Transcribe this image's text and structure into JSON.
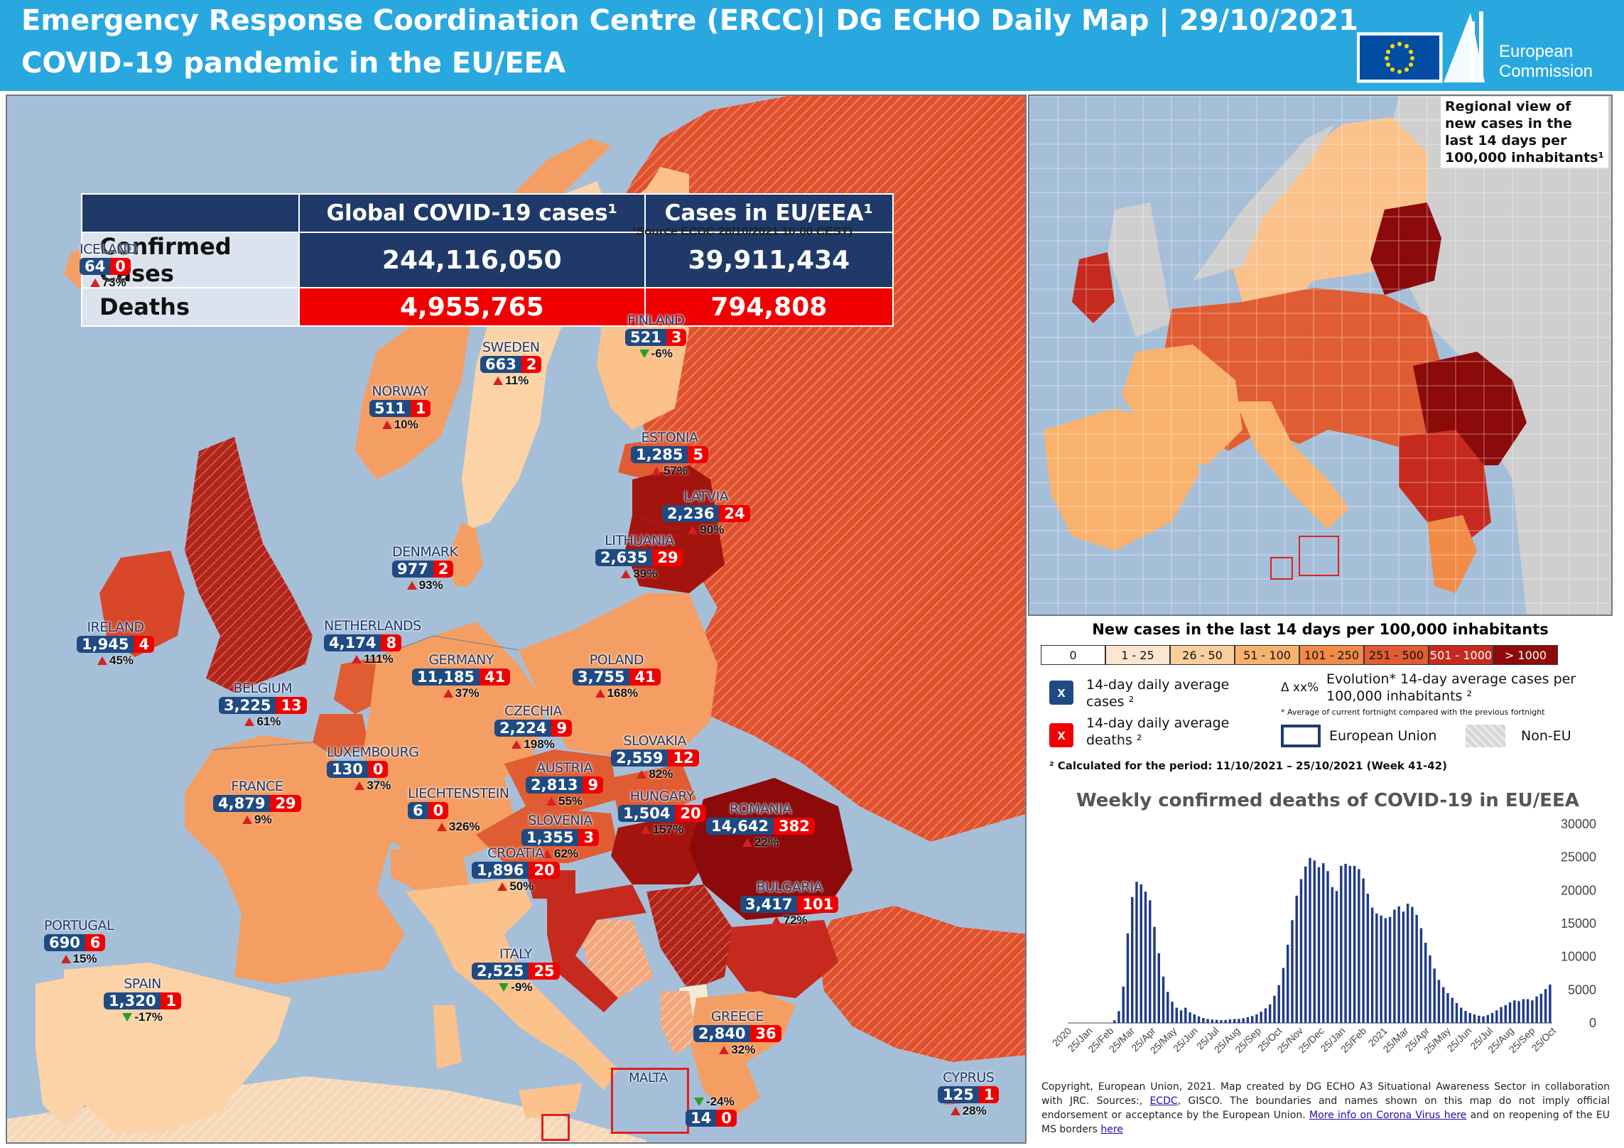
{
  "header": {
    "title_line1": "Emergency Response Coordination Centre (ERCC)| DG ECHO Daily Map | 29/10/2021",
    "title_line2": "COVID-19 pandemic in the EU/EEA",
    "logo_text_1": "European",
    "logo_text_2": "Commission"
  },
  "stats_table": {
    "col_global": "Global COVID-19 cases¹",
    "col_eu": "Cases in EU/EEA¹",
    "row_confirmed": "Confirmed Cases",
    "row_deaths": "Deaths",
    "global_confirmed": "244,116,050",
    "eu_confirmed": "39,911,434",
    "global_deaths": "4,955,765",
    "eu_deaths": "794,808",
    "source": "¹Source ECDC 28/10/2021 10:00 CEST)"
  },
  "countries": [
    {
      "name": "ICELAND",
      "cases": "64",
      "deaths": "0",
      "evo": "73%",
      "dir": "up"
    },
    {
      "name": "SWEDEN",
      "cases": "663",
      "deaths": "2",
      "evo": "11%",
      "dir": "up"
    },
    {
      "name": "FINLAND",
      "cases": "521",
      "deaths": "3",
      "evo": "-6%",
      "dir": "down"
    },
    {
      "name": "NORWAY",
      "cases": "511",
      "deaths": "1",
      "evo": "10%",
      "dir": "up"
    },
    {
      "name": "ESTONIA",
      "cases": "1,285",
      "deaths": "5",
      "evo": "57%",
      "dir": "up"
    },
    {
      "name": "LATVIA",
      "cases": "2,236",
      "deaths": "24",
      "evo": "90%",
      "dir": "up"
    },
    {
      "name": "LITHUANIA",
      "cases": "2,635",
      "deaths": "29",
      "evo": "39%",
      "dir": "up"
    },
    {
      "name": "DENMARK",
      "cases": "977",
      "deaths": "2",
      "evo": "93%",
      "dir": "up"
    },
    {
      "name": "IRELAND",
      "cases": "1,945",
      "deaths": "4",
      "evo": "45%",
      "dir": "up"
    },
    {
      "name": "NETHERLANDS",
      "cases": "4,174",
      "deaths": "8",
      "evo": "111%",
      "dir": "up"
    },
    {
      "name": "GERMANY",
      "cases": "11,185",
      "deaths": "41",
      "evo": "37%",
      "dir": "up"
    },
    {
      "name": "POLAND",
      "cases": "3,755",
      "deaths": "41",
      "evo": "168%",
      "dir": "up"
    },
    {
      "name": "BELGIUM",
      "cases": "3,225",
      "deaths": "13",
      "evo": "61%",
      "dir": "up"
    },
    {
      "name": "CZECHIA",
      "cases": "2,224",
      "deaths": "9",
      "evo": "198%",
      "dir": "up"
    },
    {
      "name": "SLOVAKIA",
      "cases": "2,559",
      "deaths": "12",
      "evo": "82%",
      "dir": "up"
    },
    {
      "name": "LUXEMBOURG",
      "cases": "130",
      "deaths": "0",
      "evo": "37%",
      "dir": "up"
    },
    {
      "name": "AUSTRIA",
      "cases": "2,813",
      "deaths": "9",
      "evo": "55%",
      "dir": "up"
    },
    {
      "name": "FRANCE",
      "cases": "4,879",
      "deaths": "29",
      "evo": "9%",
      "dir": "up"
    },
    {
      "name": "LIECHTENSTEIN",
      "cases": "6",
      "deaths": "0",
      "evo": "326%",
      "dir": "up"
    },
    {
      "name": "HUNGARY",
      "cases": "1,504",
      "deaths": "20",
      "evo": "157%",
      "dir": "up"
    },
    {
      "name": "ROMANIA",
      "cases": "14,642",
      "deaths": "382",
      "evo": "22%",
      "dir": "up"
    },
    {
      "name": "SLOVENIA",
      "cases": "1,355",
      "deaths": "3",
      "evo": "62%",
      "dir": "up"
    },
    {
      "name": "CROATIA",
      "cases": "1,896",
      "deaths": "20",
      "evo": "50%",
      "dir": "up"
    },
    {
      "name": "BULGARIA",
      "cases": "3,417",
      "deaths": "101",
      "evo": "72%",
      "dir": "up"
    },
    {
      "name": "PORTUGAL",
      "cases": "690",
      "deaths": "6",
      "evo": "15%",
      "dir": "up"
    },
    {
      "name": "ITALY",
      "cases": "2,525",
      "deaths": "25",
      "evo": "-9%",
      "dir": "down"
    },
    {
      "name": "SPAIN",
      "cases": "1,320",
      "deaths": "1",
      "evo": "-17%",
      "dir": "down"
    },
    {
      "name": "GREECE",
      "cases": "2,840",
      "deaths": "36",
      "evo": "32%",
      "dir": "up"
    },
    {
      "name": "CYPRUS",
      "cases": "125",
      "deaths": "1",
      "evo": "28%",
      "dir": "up"
    }
  ],
  "malta": {
    "name": "MALTA",
    "cases": "14",
    "deaths": "0",
    "evo": "-24%",
    "dir": "down"
  },
  "regional": {
    "title": "Regional view of new cases in the last 14 days per 100,000 inhabitants¹"
  },
  "legend": {
    "title": "New cases in the last 14 days per 100,000 inhabitants",
    "classes": [
      {
        "label": "0",
        "color": "#ffffff",
        "text": "#111"
      },
      {
        "label": "1 - 25",
        "color": "#fde6cf",
        "text": "#111"
      },
      {
        "label": "26 - 50",
        "color": "#fbcf9c",
        "text": "#111"
      },
      {
        "label": "51 - 100",
        "color": "#f9b26d",
        "text": "#111"
      },
      {
        "label": "101 - 250",
        "color": "#f28a48",
        "text": "#111"
      },
      {
        "label": "251 - 500",
        "color": "#e05c33",
        "text": "#111"
      },
      {
        "label": "501 - 1000",
        "color": "#c62a1e",
        "text": "#ffffff"
      },
      {
        "label": "> 1000",
        "color": "#8c0a0a",
        "text": "#ffffff"
      }
    ],
    "x_symbol": "x",
    "cases_label": "14-day daily average cases ²",
    "deaths_label": "14-day daily average deaths ²",
    "evo_symbol": "Δ xx%",
    "evo_label": "Evolution* 14-day average cases per 100,000 inhabitants ²",
    "evo_note": "* Average of current fortnight compared with the previous fortnight",
    "eu_label": "European Union",
    "noneu_label": "Non-EU",
    "calc_note": "² Calculated for the period: 11/10/2021 – 25/10/2021 (Week 41-42)"
  },
  "chart_data": {
    "type": "bar",
    "title": "Weekly confirmed deaths of COVID-19 in EU/EEA",
    "xlabel": "",
    "ylabel": "",
    "ylim": [
      0,
      30000
    ],
    "yticks": [
      "0",
      "5000",
      "10000",
      "15000",
      "20000",
      "25000",
      "30000"
    ],
    "x_tick_labels": [
      "2020",
      "25/Jan",
      "25/Feb",
      "25/Mar",
      "25/Apr",
      "25/May",
      "25/Jun",
      "25/Jul",
      "25/Aug",
      "25/Sep",
      "25/Oct",
      "25/Nov",
      "25/Dec",
      "25/Jan",
      "25/Feb",
      "2021",
      "25/Mar",
      "25/Apr",
      "25/May",
      "25/Jun",
      "25/Jul",
      "25/Aug",
      "25/Sep",
      "25/Oct"
    ],
    "values": [
      0,
      0,
      0,
      0,
      0,
      0,
      0,
      0,
      0,
      50,
      400,
      1800,
      5500,
      13500,
      19000,
      21300,
      20900,
      19800,
      18500,
      14500,
      10500,
      7000,
      4700,
      3200,
      2300,
      1900,
      2300,
      1600,
      1300,
      1000,
      750,
      600,
      520,
      480,
      430,
      450,
      540,
      600,
      620,
      720,
      880,
      1050,
      1300,
      1700,
      2200,
      2800,
      4100,
      5700,
      8300,
      11800,
      15500,
      19200,
      21700,
      23600,
      24900,
      24500,
      23500,
      24100,
      22900,
      20500,
      19900,
      23700,
      24000,
      23700,
      23700,
      23200,
      21800,
      19500,
      17400,
      16500,
      16200,
      15800,
      16000,
      17100,
      17600,
      16800,
      18000,
      17500,
      16300,
      14300,
      12100,
      10200,
      8200,
      6500,
      5400,
      4500,
      3800,
      3000,
      2300,
      1800,
      1500,
      1300,
      1100,
      1000,
      1200,
      1500,
      1900,
      2400,
      2700,
      3100,
      3400,
      3300,
      3600,
      3600,
      3400,
      4000,
      4400,
      5100,
      5800
    ]
  },
  "copyright": {
    "text": "Copyright, European Union, 2021. Map created by DG ECHO A3 Situational Awareness Sector in collaboration with JRC. Sources:,",
    "link1": "ECDC",
    "text2": ", GISCO. The boundaries and names shown on this map do not imply official endorsement or acceptance by the European Union.",
    "link2": "More info on Corona Virus here",
    "text3": "and on reopening of the EU MS borders",
    "link3": "here"
  }
}
